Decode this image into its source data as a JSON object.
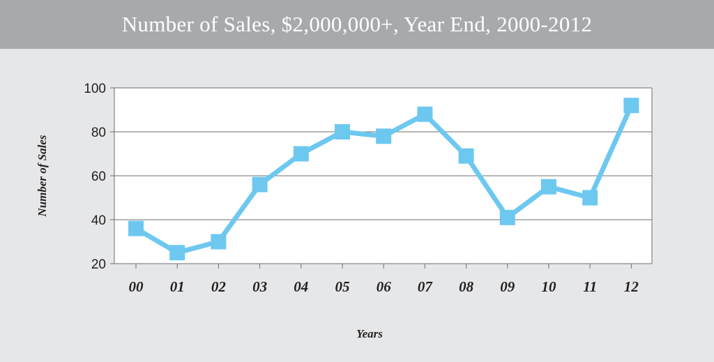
{
  "title": "Number of Sales, $2,000,000+, Year End, 2000-2012",
  "colors": {
    "background": "#e6e7e8",
    "title_bar": "#a7a9ac",
    "plot_background": "#ffffff",
    "gridline": "#6d6e71",
    "series": "#6dc8f0"
  },
  "chart_data": {
    "type": "line",
    "title": "Number of Sales, $2,000,000+, Year End, 2000-2012",
    "xlabel": "Years",
    "ylabel": "Number of Sales",
    "categories": [
      "00",
      "01",
      "02",
      "03",
      "04",
      "05",
      "06",
      "07",
      "08",
      "09",
      "10",
      "11",
      "12"
    ],
    "values": [
      36,
      25,
      30,
      56,
      70,
      80,
      78,
      88,
      69,
      41,
      55,
      50,
      92
    ],
    "ylim": [
      20,
      100
    ],
    "yticks": [
      20,
      40,
      60,
      80,
      100
    ],
    "grid": true,
    "marker": "square"
  }
}
